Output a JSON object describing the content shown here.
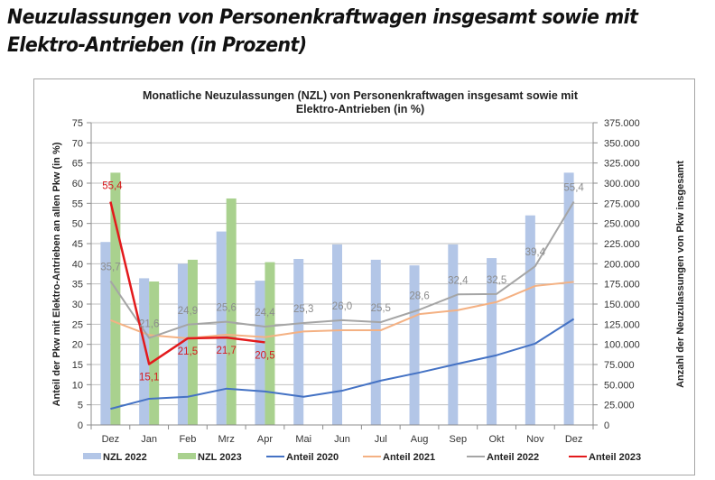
{
  "page": {
    "title_line1": "Neuzulassungen von Personenkraftwagen insgesamt sowie mit",
    "title_line2": "Elektro-Antrieben (in Prozent)"
  },
  "chart_data": {
    "type": "bar",
    "title_line1": "Monatliche Neuzulassungen (NZL)  von Personenkraftwagen insgesamt sowie mit",
    "title_line2": "Elektro-Antrieben  (in %)",
    "ylabel_left": "Anteil der Pkw mit Elektro-Antrieben an allen Pkw (in %)",
    "ylabel_right": "Anzahl der Neuzulassungen von Pkw insgesamt",
    "ylim_left": [
      0,
      75
    ],
    "ylim_right": [
      0,
      375000
    ],
    "left_ticks": [
      "0",
      "5",
      "10",
      "15",
      "20",
      "25",
      "30",
      "35",
      "40",
      "45",
      "50",
      "55",
      "60",
      "65",
      "70",
      "75"
    ],
    "right_ticks": [
      "0",
      "25.000",
      "50.000",
      "75.000",
      "100.000",
      "125.000",
      "150.000",
      "175.000",
      "200.000",
      "225.000",
      "250.000",
      "275.000",
      "300.000",
      "325.000",
      "350.000",
      "375.000"
    ],
    "grid": true,
    "legend_position": "bottom",
    "categories": [
      "Dez",
      "Jan",
      "Feb",
      "Mrz",
      "Apr",
      "Mai",
      "Jun",
      "Jul",
      "Aug",
      "Sep",
      "Okt",
      "Nov",
      "Dez"
    ],
    "bar_series": [
      {
        "name": "NZL 2022",
        "color": "#b3c6e7",
        "axis": "right",
        "values": [
          227000,
          182000,
          200000,
          240000,
          179000,
          206000,
          224000,
          205000,
          198000,
          224000,
          207000,
          260000,
          313000
        ]
      },
      {
        "name": "NZL 2023",
        "color": "#a9d18e",
        "axis": "right",
        "values": [
          313000,
          178000,
          205000,
          281000,
          202000,
          null,
          null,
          null,
          null,
          null,
          null,
          null,
          null
        ]
      }
    ],
    "line_series": [
      {
        "name": "Anteil 2020",
        "color": "#4472c4",
        "axis": "left",
        "values": [
          4.0,
          6.5,
          7.0,
          9.0,
          8.3,
          7.0,
          8.5,
          11.0,
          13.0,
          15.2,
          17.3,
          20.2,
          26.3
        ],
        "labels": null
      },
      {
        "name": "Anteil 2021",
        "color": "#f4b183",
        "axis": "left",
        "values": [
          26.0,
          22.3,
          21.5,
          22.4,
          21.8,
          23.2,
          23.5,
          23.5,
          27.5,
          28.5,
          30.5,
          34.5,
          35.5
        ],
        "labels": null
      },
      {
        "name": "Anteil 2022",
        "color": "#a5a5a5",
        "axis": "left",
        "values": [
          35.7,
          21.6,
          24.9,
          25.6,
          24.4,
          25.3,
          26.0,
          25.5,
          28.6,
          32.4,
          32.5,
          39.4,
          55.4
        ],
        "labels": [
          "35,7",
          "21,6",
          "24,9",
          "25,6",
          "24,4",
          "25,3",
          "26,0",
          "25,5",
          "28,6",
          "32,4",
          "32,5",
          "39,4",
          "55,4"
        ]
      },
      {
        "name": "Anteil 2023",
        "color": "#e31a1c",
        "axis": "left",
        "values": [
          55.4,
          15.1,
          21.5,
          21.7,
          20.5,
          null,
          null,
          null,
          null,
          null,
          null,
          null,
          null
        ],
        "labels": [
          "55,4",
          "15,1",
          "21,5",
          "21,7",
          "20,5",
          null,
          null,
          null,
          null,
          null,
          null,
          null,
          null
        ]
      }
    ],
    "legend": [
      "NZL 2022",
      "NZL 2023",
      "Anteil 2020",
      "Anteil 2021",
      "Anteil 2022",
      "Anteil 2023"
    ]
  }
}
